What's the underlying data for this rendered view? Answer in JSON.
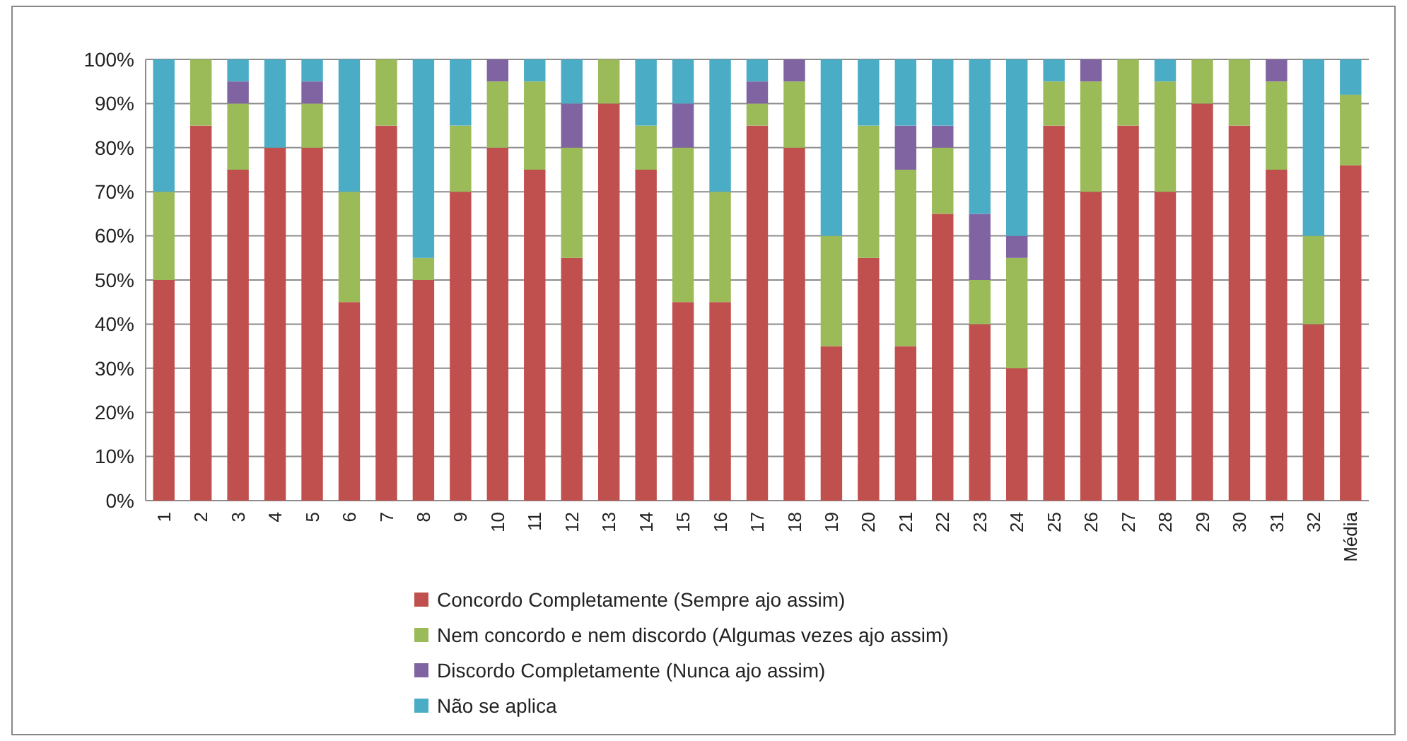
{
  "chart_data": {
    "type": "bar",
    "stacked": true,
    "categories": [
      "1",
      "2",
      "3",
      "4",
      "5",
      "6",
      "7",
      "8",
      "9",
      "10",
      "11",
      "12",
      "13",
      "14",
      "15",
      "16",
      "17",
      "18",
      "19",
      "20",
      "21",
      "22",
      "23",
      "24",
      "25",
      "26",
      "27",
      "28",
      "29",
      "30",
      "31",
      "32",
      "Média"
    ],
    "series": [
      {
        "name": "Concordo Completamente (Sempre ajo assim)",
        "color": "#c0504d",
        "values": [
          50,
          85,
          75,
          80,
          80,
          45,
          85,
          50,
          70,
          80,
          75,
          55,
          90,
          75,
          45,
          45,
          85,
          80,
          35,
          55,
          35,
          65,
          40,
          30,
          85,
          70,
          85,
          70,
          90,
          85,
          75,
          40,
          76
        ]
      },
      {
        "name": "Nem concordo e nem discordo (Algumas vezes ajo assim)",
        "color": "#9bbb59",
        "values": [
          20,
          15,
          15,
          0,
          10,
          25,
          15,
          5,
          15,
          15,
          20,
          25,
          10,
          10,
          35,
          25,
          5,
          15,
          25,
          30,
          40,
          15,
          10,
          25,
          10,
          25,
          15,
          25,
          10,
          15,
          20,
          20,
          16
        ]
      },
      {
        "name": "Discordo Completamente (Nunca ajo assim)",
        "color": "#8064a2",
        "values": [
          0,
          0,
          5,
          0,
          5,
          0,
          0,
          0,
          0,
          5,
          0,
          10,
          0,
          0,
          10,
          0,
          5,
          5,
          0,
          0,
          10,
          5,
          15,
          5,
          0,
          5,
          0,
          0,
          0,
          0,
          5,
          0,
          0
        ]
      },
      {
        "name": "Não se aplica",
        "color": "#4bacc6",
        "values": [
          30,
          0,
          5,
          20,
          5,
          30,
          0,
          45,
          15,
          0,
          5,
          10,
          0,
          15,
          10,
          30,
          5,
          0,
          40,
          15,
          15,
          15,
          35,
          40,
          5,
          0,
          0,
          5,
          0,
          0,
          0,
          40,
          8
        ]
      }
    ],
    "ylim": [
      0,
      100
    ],
    "yticks": [
      {
        "value": 0,
        "label": "0%"
      },
      {
        "value": 10,
        "label": "10%"
      },
      {
        "value": 20,
        "label": "20%"
      },
      {
        "value": 30,
        "label": "30%"
      },
      {
        "value": 40,
        "label": "40%"
      },
      {
        "value": 50,
        "label": "50%"
      },
      {
        "value": 60,
        "label": "60%"
      },
      {
        "value": 70,
        "label": "70%"
      },
      {
        "value": 80,
        "label": "80%"
      },
      {
        "value": 90,
        "label": "90%"
      },
      {
        "value": 100,
        "label": "100%"
      }
    ],
    "grid": "y",
    "legend": "bottom"
  }
}
